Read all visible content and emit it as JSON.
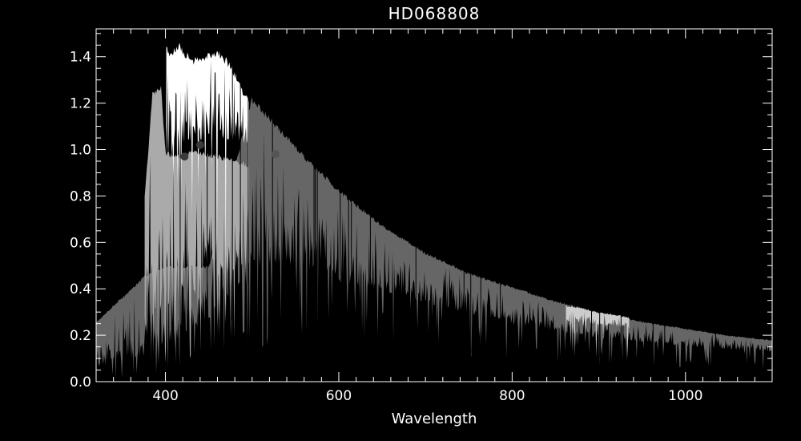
{
  "chart_data": {
    "type": "line",
    "title": "HD068808",
    "xlabel": "Wavelength",
    "ylabel": "",
    "xlim": [
      320,
      1100
    ],
    "ylim": [
      0.0,
      1.52
    ],
    "x_ticks": [
      400,
      600,
      800,
      1000
    ],
    "x_tick_labels": [
      "400",
      "600",
      "800",
      "1000"
    ],
    "y_ticks": [
      0.0,
      0.2,
      0.4,
      0.6,
      0.8,
      1.0,
      1.2,
      1.4
    ],
    "y_tick_labels": [
      "0.0",
      "0.2",
      "0.4",
      "0.6",
      "0.8",
      "1.0",
      "1.2",
      "1.4"
    ],
    "grid": false,
    "legend": "none",
    "background": "#000000",
    "foreground": "#ffffff",
    "series": [
      {
        "color": "#666666",
        "kind": "spectrum-band",
        "x_range": [
          320,
          1100
        ],
        "continuum": {
          "x": [
            320,
            340,
            360,
            376,
            400,
            450,
            500,
            550,
            600,
            650,
            700,
            750,
            800,
            850,
            900,
            950,
            1000,
            1050,
            1100
          ],
          "y": [
            0.26,
            0.33,
            0.4,
            0.46,
            0.5,
            0.5,
            1.23,
            1.02,
            0.83,
            0.68,
            0.56,
            0.47,
            0.41,
            0.35,
            0.3,
            0.26,
            0.23,
            0.2,
            0.18
          ]
        },
        "floor": {
          "x": [
            320,
            376,
            400,
            500,
            550,
            600,
            650,
            700,
            800,
            900,
            1000,
            1100
          ],
          "y": [
            0.02,
            0.05,
            0.1,
            0.35,
            0.4,
            0.36,
            0.34,
            0.3,
            0.22,
            0.17,
            0.14,
            0.12
          ]
        }
      },
      {
        "color": "#aaaaaa",
        "kind": "spectrum-band",
        "x_range": [
          376,
          497
        ],
        "continuum": {
          "x": [
            376,
            385,
            395,
            400,
            410,
            420,
            430,
            440,
            450,
            460,
            470,
            480,
            490,
            497
          ],
          "y": [
            0.8,
            1.25,
            1.28,
            1.0,
            0.98,
            0.98,
            1.0,
            1.0,
            0.99,
            0.98,
            0.97,
            0.96,
            0.95,
            0.94
          ]
        },
        "floor": {
          "x": [
            376,
            400,
            420,
            450,
            480,
            497
          ],
          "y": [
            0.1,
            0.15,
            0.22,
            0.3,
            0.4,
            0.45
          ]
        }
      },
      {
        "color": "#ffffff",
        "kind": "spectrum-band",
        "x_range": [
          401,
          497
        ],
        "continuum": {
          "x": [
            401,
            405,
            410,
            415,
            420,
            425,
            430,
            440,
            450,
            460,
            470,
            480,
            490,
            497
          ],
          "y": [
            1.45,
            1.43,
            1.44,
            1.47,
            1.44,
            1.42,
            1.4,
            1.4,
            1.42,
            1.43,
            1.4,
            1.34,
            1.25,
            1.23
          ]
        },
        "floor": {
          "x": [
            401,
            420,
            450,
            480,
            497
          ],
          "y": [
            0.85,
            0.95,
            0.98,
            0.98,
            0.97
          ]
        }
      },
      {
        "color": "#cccccc",
        "kind": "spectrum-band",
        "x_range": [
          862,
          935
        ],
        "continuum": {
          "x": [
            862,
            880,
            900,
            920,
            935
          ],
          "y": [
            0.33,
            0.32,
            0.3,
            0.29,
            0.28
          ]
        },
        "floor": {
          "x": [
            862,
            935
          ],
          "y": [
            0.25,
            0.22
          ]
        }
      }
    ],
    "points": [
      {
        "x": 422,
        "y": 0.97,
        "color": "#3a3a3a"
      },
      {
        "x": 440,
        "y": 1.02,
        "color": "#3a3a3a"
      },
      {
        "x": 527,
        "y": 0.98,
        "color": "#555555"
      }
    ]
  }
}
